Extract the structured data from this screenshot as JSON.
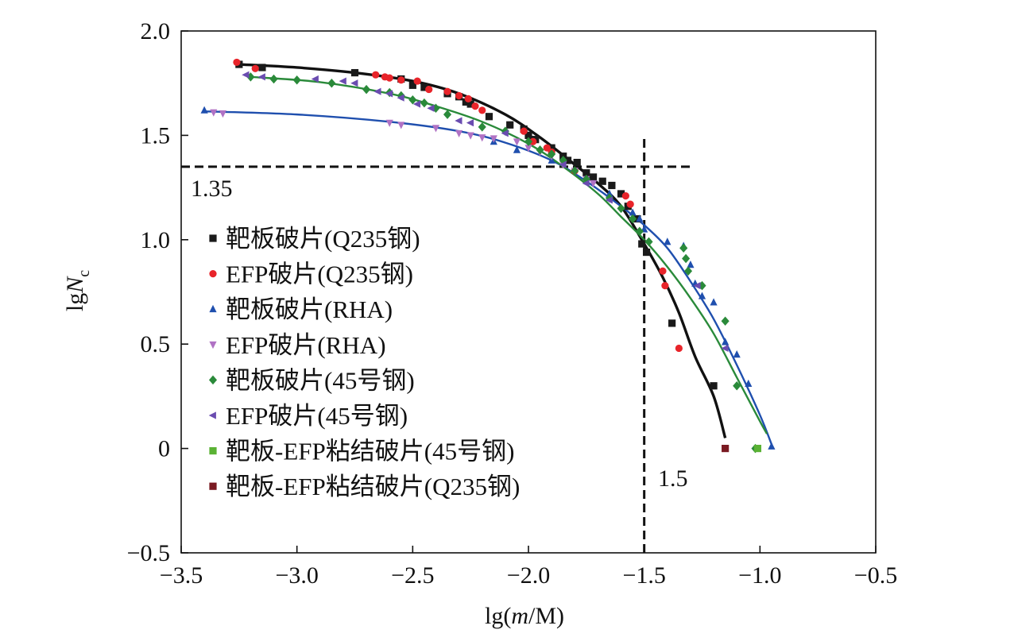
{
  "chart_data": {
    "type": "scatter",
    "title": "",
    "xlabel_parts": [
      "lg(",
      "m",
      "/M)"
    ],
    "ylabel_parts": [
      "lg",
      "N",
      "c"
    ],
    "xlim": [
      -3.5,
      -0.5
    ],
    "ylim": [
      -0.5,
      2.0
    ],
    "xticks": [
      -3.5,
      -3.0,
      -2.5,
      -2.0,
      -1.5,
      -1.0,
      -0.5
    ],
    "xtick_labels": [
      "−3.5",
      "−3.0",
      "−2.5",
      "−2.0",
      "−1.5",
      "−1.0",
      "−0.5"
    ],
    "yticks": [
      -0.5,
      0,
      0.5,
      1.0,
      1.5,
      2.0
    ],
    "ytick_labels": [
      "−0.5",
      "0",
      "0.5",
      "1.0",
      "1.5",
      "2.0"
    ],
    "grid": false,
    "legend_position": "left",
    "reference_lines": [
      {
        "orientation": "horizontal",
        "value": 1.35,
        "from": -3.5,
        "to": -1.3,
        "label": "1.35"
      },
      {
        "orientation": "vertical",
        "value": -1.5,
        "from": -0.5,
        "to": 1.5,
        "label": "1.5"
      }
    ],
    "fit_curves": [
      {
        "name": "black-fit",
        "color": "#111111",
        "points": [
          [
            -3.25,
            1.84
          ],
          [
            -3.0,
            1.825
          ],
          [
            -2.75,
            1.8
          ],
          [
            -2.5,
            1.76
          ],
          [
            -2.3,
            1.7
          ],
          [
            -2.1,
            1.6
          ],
          [
            -1.95,
            1.49
          ],
          [
            -1.8,
            1.36
          ],
          [
            -1.7,
            1.27
          ],
          [
            -1.6,
            1.16
          ],
          [
            -1.5,
            0.98
          ],
          [
            -1.42,
            0.82
          ],
          [
            -1.35,
            0.65
          ],
          [
            -1.28,
            0.44
          ],
          [
            -1.2,
            0.25
          ],
          [
            -1.15,
            0.05
          ]
        ]
      },
      {
        "name": "blue-fit",
        "color": "#1f4fae",
        "points": [
          [
            -3.4,
            1.615
          ],
          [
            -3.0,
            1.6
          ],
          [
            -2.6,
            1.565
          ],
          [
            -2.3,
            1.52
          ],
          [
            -2.1,
            1.465
          ],
          [
            -1.9,
            1.38
          ],
          [
            -1.75,
            1.28
          ],
          [
            -1.6,
            1.16
          ],
          [
            -1.5,
            1.07
          ],
          [
            -1.4,
            0.96
          ],
          [
            -1.3,
            0.8
          ],
          [
            -1.2,
            0.62
          ],
          [
            -1.1,
            0.4
          ],
          [
            -1.0,
            0.16
          ],
          [
            -0.95,
            0.02
          ]
        ]
      },
      {
        "name": "green-fit",
        "color": "#2a8a3a",
        "points": [
          [
            -3.2,
            1.78
          ],
          [
            -2.9,
            1.755
          ],
          [
            -2.6,
            1.7
          ],
          [
            -2.4,
            1.64
          ],
          [
            -2.2,
            1.565
          ],
          [
            -2.0,
            1.46
          ],
          [
            -1.85,
            1.35
          ],
          [
            -1.7,
            1.22
          ],
          [
            -1.6,
            1.11
          ],
          [
            -1.5,
            1.0
          ],
          [
            -1.4,
            0.87
          ],
          [
            -1.3,
            0.72
          ],
          [
            -1.2,
            0.55
          ],
          [
            -1.1,
            0.34
          ],
          [
            -1.0,
            0.13
          ],
          [
            -0.97,
            0.07
          ]
        ]
      }
    ],
    "series": [
      {
        "name": "靶板破片(Q235钢)",
        "marker": "square",
        "color": "#1a1a1a",
        "points": [
          [
            -3.25,
            1.84
          ],
          [
            -3.15,
            1.825
          ],
          [
            -2.75,
            1.8
          ],
          [
            -2.55,
            1.77
          ],
          [
            -2.5,
            1.74
          ],
          [
            -2.45,
            1.73
          ],
          [
            -2.35,
            1.7
          ],
          [
            -2.3,
            1.685
          ],
          [
            -2.27,
            1.66
          ],
          [
            -2.25,
            1.65
          ],
          [
            -2.17,
            1.59
          ],
          [
            -2.08,
            1.55
          ],
          [
            -2.02,
            1.53
          ],
          [
            -2.0,
            1.5
          ],
          [
            -1.97,
            1.48
          ],
          [
            -1.9,
            1.44
          ],
          [
            -1.85,
            1.4
          ],
          [
            -1.83,
            1.38
          ],
          [
            -1.79,
            1.37
          ],
          [
            -1.75,
            1.32
          ],
          [
            -1.72,
            1.3
          ],
          [
            -1.68,
            1.28
          ],
          [
            -1.64,
            1.26
          ],
          [
            -1.6,
            1.22
          ],
          [
            -1.57,
            1.16
          ],
          [
            -1.53,
            1.1
          ],
          [
            -1.51,
            0.98
          ],
          [
            -1.49,
            0.94
          ],
          [
            -1.38,
            0.6
          ],
          [
            -1.2,
            0.3
          ]
        ]
      },
      {
        "name": "EFP破片(Q235钢)",
        "marker": "circle",
        "color": "#e8242a",
        "points": [
          [
            -3.26,
            1.85
          ],
          [
            -3.18,
            1.82
          ],
          [
            -2.66,
            1.79
          ],
          [
            -2.62,
            1.78
          ],
          [
            -2.6,
            1.775
          ],
          [
            -2.55,
            1.765
          ],
          [
            -2.48,
            1.76
          ],
          [
            -2.43,
            1.72
          ],
          [
            -2.35,
            1.71
          ],
          [
            -2.3,
            1.69
          ],
          [
            -2.26,
            1.675
          ],
          [
            -2.23,
            1.64
          ],
          [
            -2.2,
            1.62
          ],
          [
            -2.02,
            1.52
          ],
          [
            -1.98,
            1.47
          ],
          [
            -1.92,
            1.44
          ],
          [
            -1.9,
            1.42
          ],
          [
            -1.8,
            1.33
          ],
          [
            -1.58,
            1.21
          ],
          [
            -1.56,
            1.17
          ],
          [
            -1.42,
            0.85
          ],
          [
            -1.41,
            0.78
          ],
          [
            -1.35,
            0.48
          ]
        ]
      },
      {
        "name": "靶板破片(RHA)",
        "marker": "triangle-up",
        "color": "#1f4fae",
        "points": [
          [
            -3.4,
            1.62
          ],
          [
            -2.15,
            1.47
          ],
          [
            -2.05,
            1.43
          ],
          [
            -1.9,
            1.38
          ],
          [
            -1.65,
            1.22
          ],
          [
            -1.55,
            1.13
          ],
          [
            -1.52,
            1.1
          ],
          [
            -1.5,
            1.05
          ],
          [
            -1.4,
            0.99
          ],
          [
            -1.33,
            0.97
          ],
          [
            -1.3,
            0.88
          ],
          [
            -1.28,
            0.79
          ],
          [
            -1.25,
            0.73
          ],
          [
            -1.2,
            0.7
          ],
          [
            -1.15,
            0.51
          ],
          [
            -1.1,
            0.45
          ],
          [
            -1.05,
            0.31
          ],
          [
            -0.95,
            0.01
          ]
        ]
      },
      {
        "name": "EFP破片(RHA)",
        "marker": "triangle-down",
        "color": "#b072c4",
        "points": [
          [
            -3.36,
            1.61
          ],
          [
            -3.32,
            1.605
          ],
          [
            -2.6,
            1.56
          ],
          [
            -2.55,
            1.55
          ],
          [
            -2.4,
            1.535
          ],
          [
            -2.3,
            1.51
          ],
          [
            -2.25,
            1.5
          ],
          [
            -2.2,
            1.49
          ],
          [
            -2.15,
            1.485
          ],
          [
            -2.05,
            1.47
          ],
          [
            -2.0,
            1.44
          ],
          [
            -1.95,
            1.42
          ],
          [
            -1.9,
            1.4
          ],
          [
            -1.85,
            1.36
          ],
          [
            -1.8,
            1.33
          ],
          [
            -1.75,
            1.29
          ],
          [
            -1.72,
            1.27
          ]
        ]
      },
      {
        "name": "靶板破片(45号钢)",
        "marker": "diamond",
        "color": "#2a8a3a",
        "points": [
          [
            -3.2,
            1.78
          ],
          [
            -3.1,
            1.77
          ],
          [
            -3.0,
            1.765
          ],
          [
            -2.85,
            1.75
          ],
          [
            -2.7,
            1.72
          ],
          [
            -2.6,
            1.705
          ],
          [
            -2.55,
            1.69
          ],
          [
            -2.5,
            1.67
          ],
          [
            -2.45,
            1.655
          ],
          [
            -2.4,
            1.63
          ],
          [
            -2.35,
            1.6
          ],
          [
            -2.2,
            1.54
          ],
          [
            -2.1,
            1.52
          ],
          [
            -2.0,
            1.47
          ],
          [
            -1.95,
            1.43
          ],
          [
            -1.9,
            1.41
          ],
          [
            -1.85,
            1.38
          ],
          [
            -1.8,
            1.33
          ],
          [
            -1.75,
            1.29
          ],
          [
            -1.65,
            1.2
          ],
          [
            -1.6,
            1.15
          ],
          [
            -1.55,
            1.1
          ],
          [
            -1.52,
            1.04
          ],
          [
            -1.48,
            0.99
          ],
          [
            -1.33,
            0.96
          ],
          [
            -1.32,
            0.91
          ],
          [
            -1.31,
            0.85
          ],
          [
            -1.25,
            0.78
          ],
          [
            -1.15,
            0.61
          ],
          [
            -1.1,
            0.3
          ],
          [
            -1.02,
            0.0
          ]
        ]
      },
      {
        "name": "EFP破片(45号钢)",
        "marker": "triangle-left",
        "color": "#6a4cb0",
        "points": [
          [
            -3.22,
            1.79
          ],
          [
            -3.15,
            1.78
          ],
          [
            -2.92,
            1.77
          ],
          [
            -2.8,
            1.76
          ],
          [
            -2.75,
            1.75
          ],
          [
            -2.65,
            1.71
          ],
          [
            -2.6,
            1.7
          ],
          [
            -2.55,
            1.68
          ],
          [
            -2.48,
            1.65
          ],
          [
            -2.42,
            1.63
          ],
          [
            -2.3,
            1.57
          ],
          [
            -2.25,
            1.56
          ],
          [
            -2.1,
            1.51
          ],
          [
            -1.85,
            1.36
          ],
          [
            -1.75,
            1.27
          ],
          [
            -1.65,
            1.19
          ],
          [
            -1.27,
            0.78
          ],
          [
            -1.15,
            0.48
          ]
        ]
      },
      {
        "name": "靶板-EFP粘结破片(45号钢)",
        "marker": "square",
        "color": "#5ab234",
        "points": [
          [
            -1.01,
            0.0
          ]
        ]
      },
      {
        "name": "靶板-EFP粘结破片(Q235钢)",
        "marker": "square",
        "color": "#7a1a22",
        "points": [
          [
            -1.15,
            0.0
          ]
        ]
      }
    ]
  }
}
